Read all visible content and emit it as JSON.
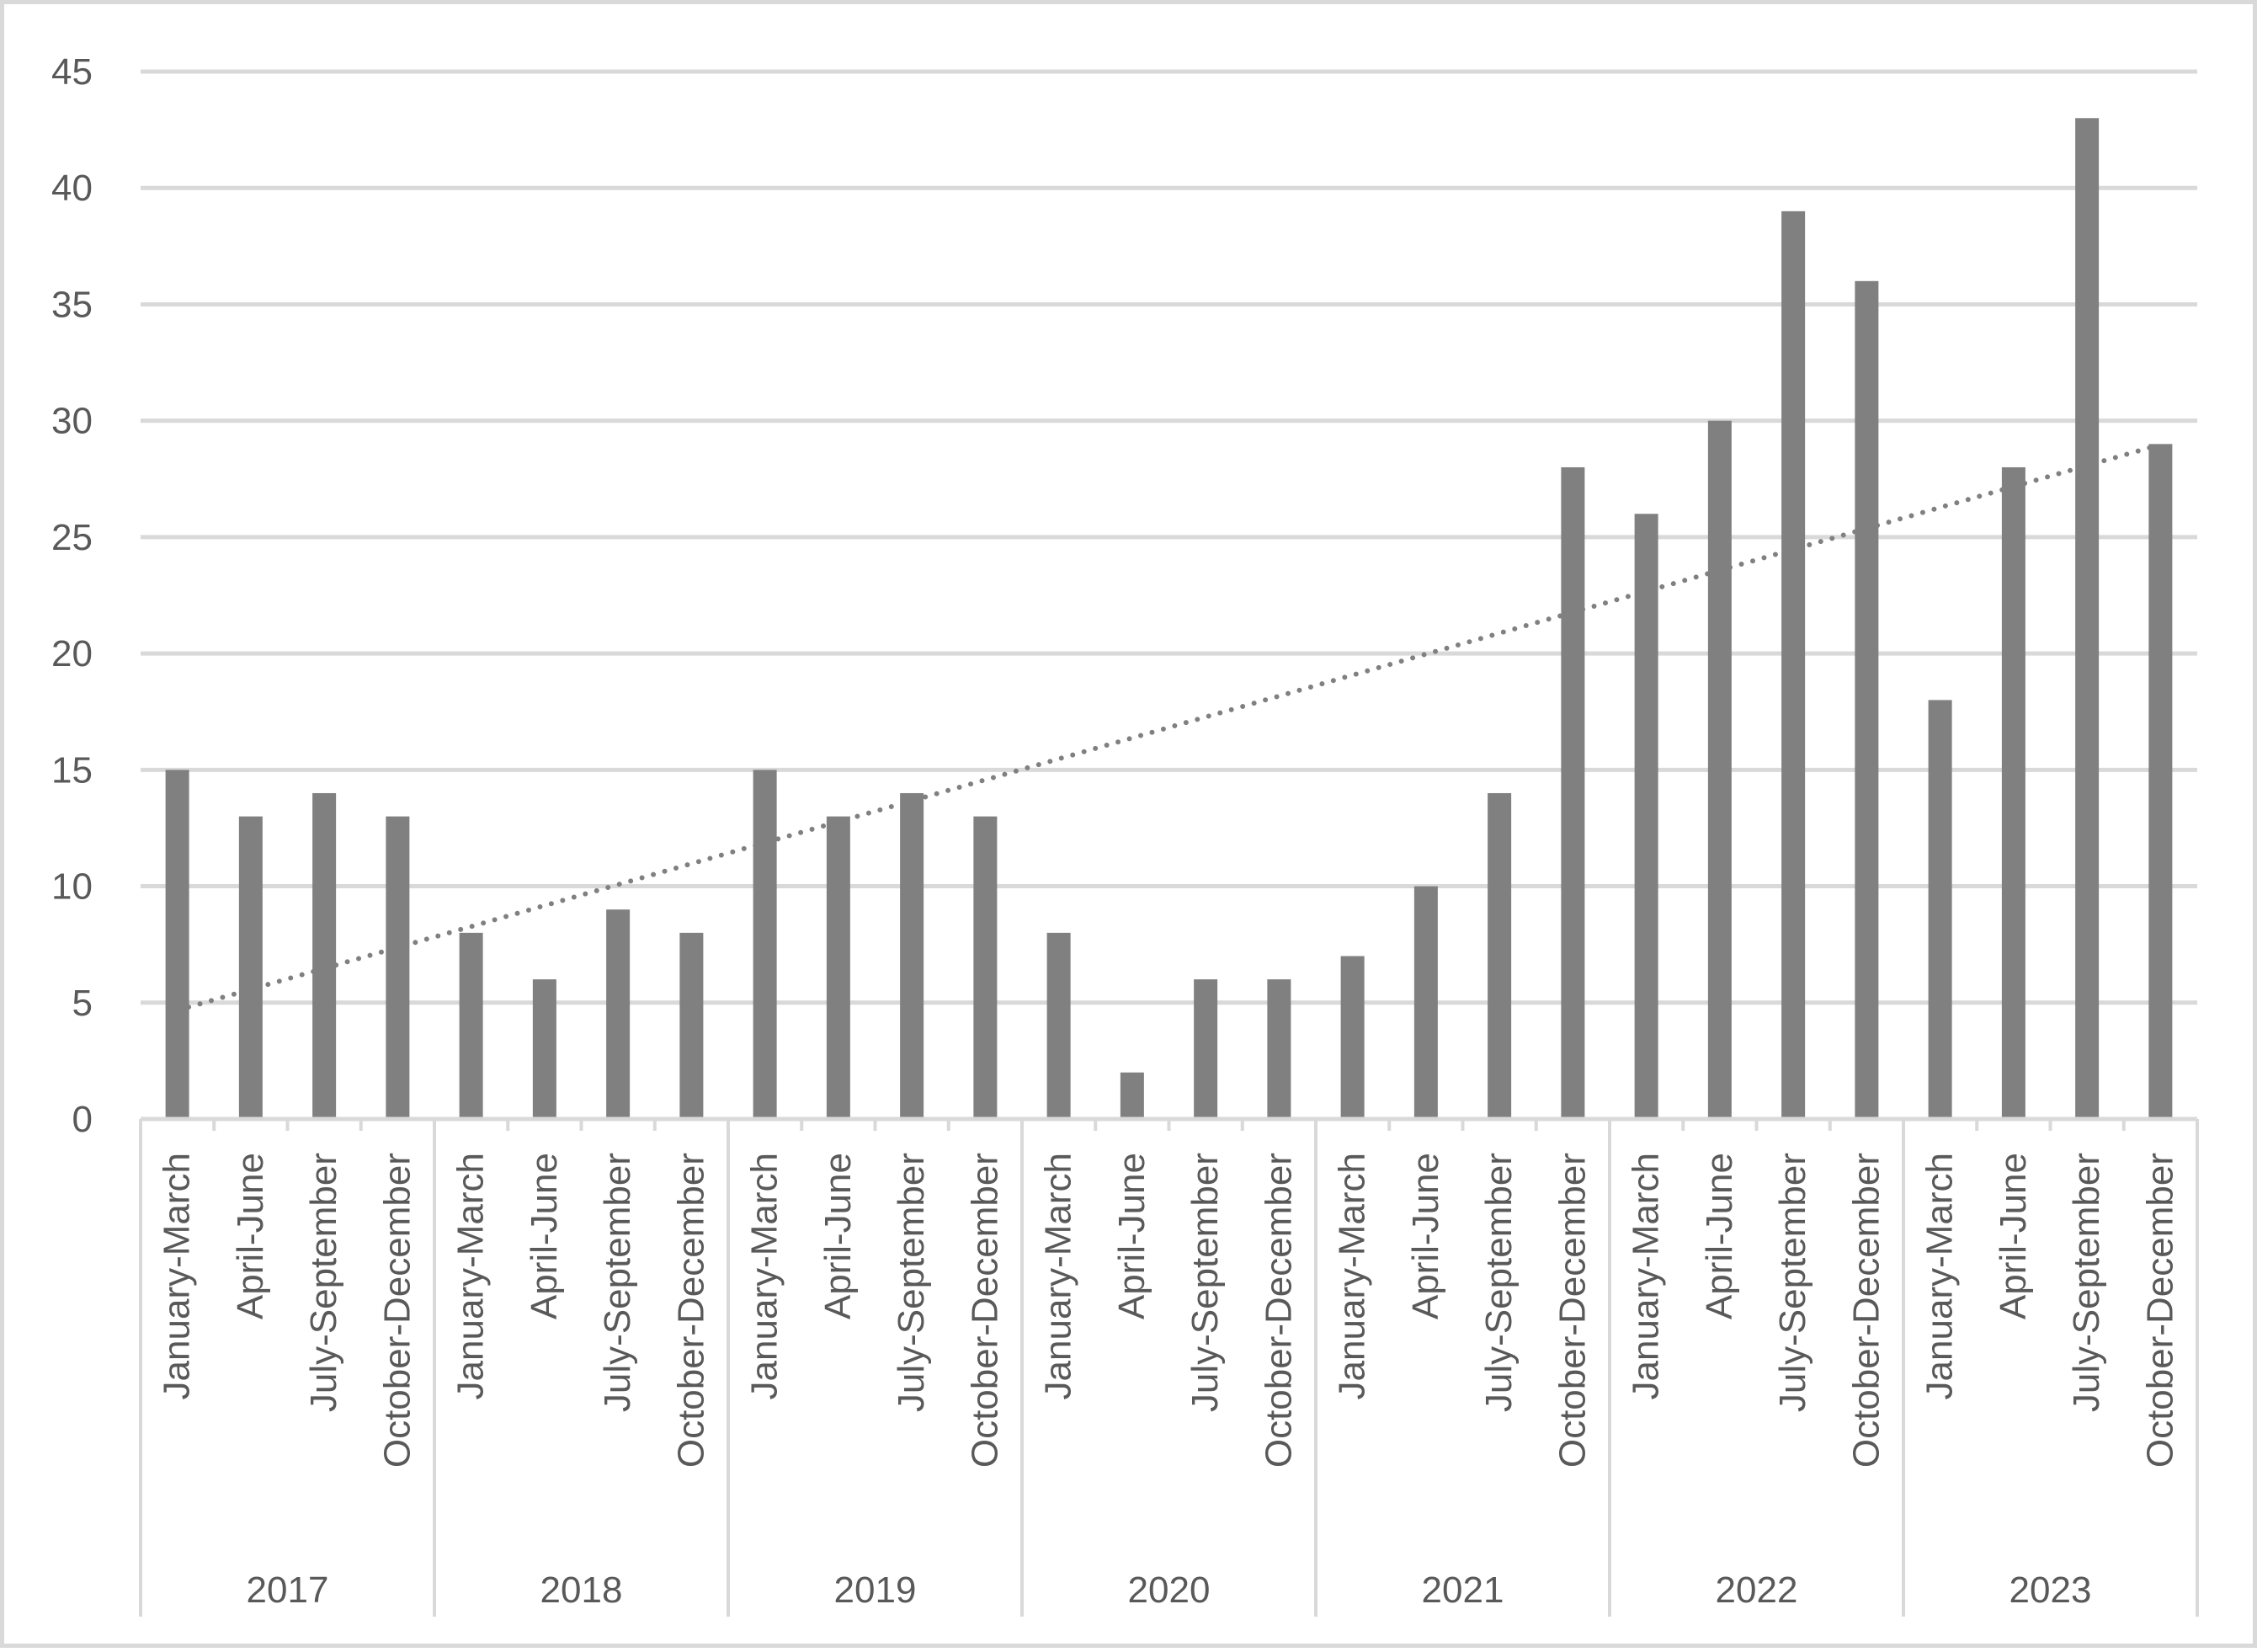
{
  "chart_data": {
    "type": "bar",
    "title": "",
    "xlabel": "",
    "ylabel": "",
    "ylim": [
      0,
      45
    ],
    "yticks": [
      0,
      5,
      10,
      15,
      20,
      25,
      30,
      35,
      40,
      45
    ],
    "grid": true,
    "legend": "none",
    "bar_color": "#808080",
    "grid_color": "#d9d9d9",
    "trendline": {
      "type": "linear",
      "style": "dotted",
      "color": "#808080"
    },
    "groups": [
      {
        "label": "2017",
        "categories": [
          "January-March",
          "April-June",
          "July-September",
          "October-December"
        ],
        "values": [
          15,
          13,
          14,
          13
        ]
      },
      {
        "label": "2018",
        "categories": [
          "January-March",
          "April-June",
          "July-September",
          "October-December"
        ],
        "values": [
          8,
          6,
          9,
          8
        ]
      },
      {
        "label": "2019",
        "categories": [
          "January-March",
          "April-June",
          "July-September",
          "October-December"
        ],
        "values": [
          15,
          13,
          14,
          13
        ]
      },
      {
        "label": "2020",
        "categories": [
          "January-March",
          "April-June",
          "July-September",
          "October-December"
        ],
        "values": [
          8,
          2,
          6,
          6
        ]
      },
      {
        "label": "2021",
        "categories": [
          "January-March",
          "April-June",
          "July-September",
          "October-December"
        ],
        "values": [
          7,
          10,
          14,
          28
        ]
      },
      {
        "label": "2022",
        "categories": [
          "January-March",
          "April-June",
          "July-September",
          "October-December"
        ],
        "values": [
          26,
          30,
          39,
          36
        ]
      },
      {
        "label": "2023",
        "categories": [
          "January-March",
          "April-June",
          "July-September",
          "October-December"
        ],
        "values": [
          18,
          28,
          43,
          29
        ]
      }
    ]
  }
}
